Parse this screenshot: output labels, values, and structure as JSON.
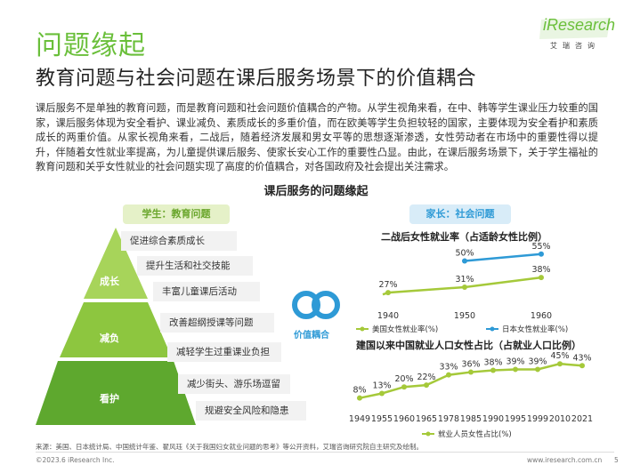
{
  "header": {
    "title": "问题缘起",
    "subtitle": "教育问题与社会问题在课后服务场景下的价值耦合"
  },
  "logo": {
    "brand": "iResearch",
    "tagline": "艾瑞咨询"
  },
  "intro": "课后服务不是单独的教育问题，而是教育问题和社会问题价值耦合的产物。从学生视角来看，在中、韩等学生课业压力较重的国家，课后服务体现为安全看护、课业减负、素质成长的多重价值，而在欧美等学生负担较轻的国家，主要体现为安全看护和素质成长的两重价值。从家长视角来看，二战后，随着经济发展和男女平等的思想逐渐渗透，女性劳动者在市场中的重要性得以提升，伴随着女性就业率提高，为儿童提供课后服务、使家长安心工作的重要性凸显。由此，在课后服务场景下，关于学生福祉的教育问题和关乎女性就业的社会问题实现了高度的价值耦合，对各国政府及社会提出关注需求。",
  "section_heading": "课后服务的问题缘起",
  "left": {
    "badge": "学生：教育问题",
    "levels": [
      "成长",
      "减负",
      "看护"
    ],
    "bullets": [
      "促进综合素质成长",
      "提升生活和社交技能",
      "丰富儿童课后活动",
      "改善超纲授课等问题",
      "减轻学生过重课业负担",
      "减少街头、游乐场逗留",
      "规避安全风险和隐患"
    ]
  },
  "middle": {
    "label": "价值耦合"
  },
  "right": {
    "badge": "家长：社会问题"
  },
  "colors": {
    "green": "#8dc63f",
    "dark_green": "#6abf3a",
    "blue": "#2e9ad6",
    "olive": "#a5c93a",
    "gray": "#f2f2f2"
  },
  "chart_data": [
    {
      "type": "line",
      "title": "二战后女性就业率（占适龄女性比例）",
      "x": [
        "1940",
        "1950",
        "1960"
      ],
      "series": [
        {
          "name": "美国女性就业率(%)",
          "values": [
            27,
            31,
            38
          ],
          "labels": [
            "27%",
            "31%",
            "38%"
          ]
        },
        {
          "name": "日本女性就业率(%)",
          "values": [
            null,
            50,
            55
          ],
          "labels": [
            "",
            "50%",
            "55%"
          ]
        }
      ],
      "ylim": [
        0,
        60
      ]
    },
    {
      "type": "line",
      "title": "建国以来中国就业人口女性占比（占就业人口比例）",
      "x": [
        "1949",
        "1955",
        "1960",
        "1965",
        "1978",
        "1985",
        "1990",
        "1995",
        "1999",
        "2010",
        "2021"
      ],
      "series": [
        {
          "name": "就业人员女性占比(%)",
          "values": [
            8,
            13,
            20,
            22,
            33,
            36,
            38,
            39,
            39,
            45,
            43
          ],
          "labels": [
            "8%",
            "13%",
            "20%",
            "22%",
            "33%",
            "36%",
            "38%",
            "39%",
            "39%",
            "45%",
            "43%"
          ]
        }
      ],
      "ylim": [
        0,
        50
      ]
    }
  ],
  "footer": {
    "source": "来源：美国、日本统计局、中国统计年鉴、翟风珏《关于我国妇女就业问题的思考》等公开资料，艾瑞咨询研究院自主研究及绘制。",
    "copyright": "©2023.6 iResearch Inc.",
    "url": "www.iresearch.com.cn",
    "page": "5"
  }
}
